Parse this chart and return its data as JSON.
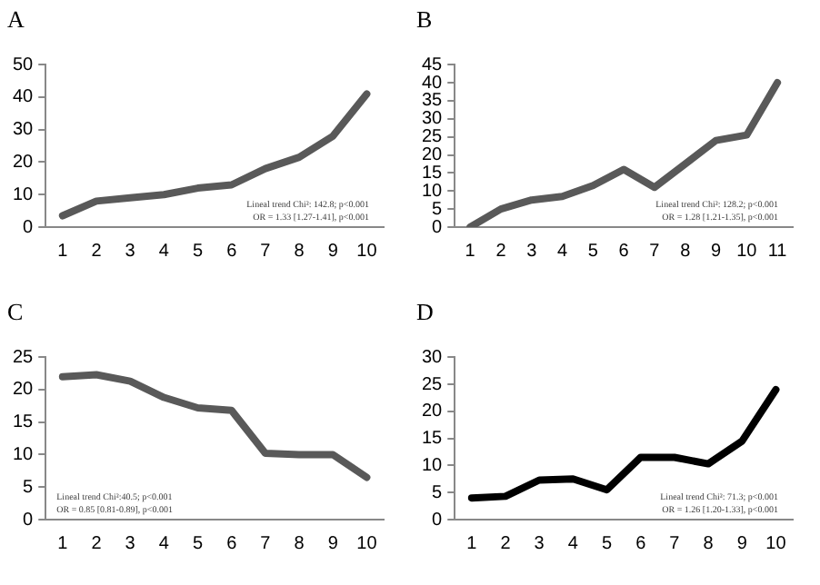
{
  "chart_data": [
    {
      "type": "line",
      "title": "A",
      "categories": [
        "1",
        "2",
        "3",
        "4",
        "5",
        "6",
        "7",
        "8",
        "9",
        "10"
      ],
      "series": [
        {
          "color": "#595959",
          "values": [
            3.5,
            8,
            9,
            10,
            12,
            13,
            18,
            21.5,
            28,
            41
          ]
        }
      ],
      "ylim": [
        0,
        50
      ],
      "yticks": [
        0,
        10,
        20,
        30,
        40,
        50
      ],
      "grid": false,
      "legend": false,
      "marker": "none",
      "line_style": "solid",
      "annotations": [
        "Lineal trend Chi²: 142.8; p<0.001",
        "OR = 1.33 [1.27-1.41], p<0.001"
      ]
    },
    {
      "type": "line",
      "title": "B",
      "categories": [
        "1",
        "2",
        "3",
        "4",
        "5",
        "6",
        "7",
        "8",
        "9",
        "10",
        "11"
      ],
      "series": [
        {
          "color": "#595959",
          "values": [
            0,
            5,
            7.5,
            8.5,
            11.5,
            16,
            11,
            17.5,
            24,
            25.5,
            40
          ]
        }
      ],
      "ylim": [
        0,
        45
      ],
      "yticks": [
        0,
        5,
        10,
        15,
        20,
        25,
        30,
        35,
        40,
        45
      ],
      "grid": false,
      "legend": false,
      "marker": "none",
      "line_style": "solid",
      "annotations": [
        "Lineal trend Chi²: 128.2; p<0.001",
        "OR = 1.28 [1.21-1.35], p<0.001"
      ]
    },
    {
      "type": "line",
      "title": "C",
      "categories": [
        "1",
        "2",
        "3",
        "4",
        "5",
        "6",
        "7",
        "8",
        "9",
        "10"
      ],
      "series": [
        {
          "color": "#595959",
          "values": [
            22,
            22.3,
            21.3,
            18.8,
            17.2,
            16.8,
            10.2,
            10,
            10,
            6.5
          ]
        }
      ],
      "ylim": [
        0,
        25
      ],
      "yticks": [
        0,
        5,
        10,
        15,
        20,
        25
      ],
      "grid": false,
      "legend": false,
      "marker": "none",
      "line_style": "solid",
      "annotations": [
        "Lineal trend Chi²:40.5; p<0.001",
        "OR = 0.85 [0.81-0.89], p<0.001"
      ]
    },
    {
      "type": "line",
      "title": "D",
      "categories": [
        "1",
        "2",
        "3",
        "4",
        "5",
        "6",
        "7",
        "8",
        "9",
        "10"
      ],
      "series": [
        {
          "color": "#000000",
          "values": [
            4,
            4.3,
            7.3,
            7.5,
            5.5,
            11.5,
            11.5,
            10.3,
            14.5,
            24
          ]
        }
      ],
      "ylim": [
        0,
        30
      ],
      "yticks": [
        0,
        5,
        10,
        15,
        20,
        25,
        30
      ],
      "grid": false,
      "legend": false,
      "marker": "none",
      "line_style": "solid",
      "annotations": [
        "Lineal trend Chi²: 71.3; p<0.001",
        "OR = 1.26 [1.20-1.33], p<0.001"
      ]
    }
  ]
}
